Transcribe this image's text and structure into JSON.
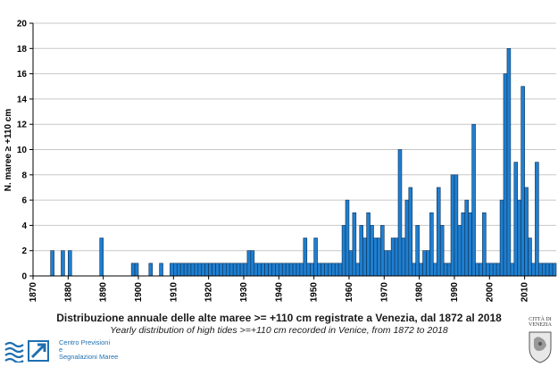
{
  "chart_data": {
    "type": "bar",
    "title": "Distribuzione annuale delle alte maree >= +110 cm registrate a Venezia, dal 1872 al 2018",
    "subtitle": "Yearly distribution of high tides >=+110 cm recorded in Venice, from 1872 to 2018",
    "ylabel": "N. maree ≥ +110 cm",
    "xlabel": "",
    "xlim": [
      1870,
      2018
    ],
    "ylim": [
      0,
      20
    ],
    "x_ticks": [
      "1870",
      "1880",
      "1890",
      "1900",
      "1910",
      "1920",
      "1930",
      "1940",
      "1950",
      "1960",
      "1970",
      "1980",
      "1990",
      "2000",
      "2010"
    ],
    "y_ticks": [
      "0",
      "2",
      "4",
      "6",
      "8",
      "10",
      "12",
      "14",
      "16",
      "18",
      "20"
    ],
    "grid": "horizontal",
    "bar_color": "#1f7fd0",
    "years": [
      1875,
      1878,
      1880,
      1889,
      1898,
      1899,
      1903,
      1906,
      1909,
      1910,
      1911,
      1912,
      1913,
      1914,
      1915,
      1916,
      1917,
      1918,
      1919,
      1920,
      1921,
      1922,
      1923,
      1924,
      1925,
      1926,
      1927,
      1928,
      1929,
      1930,
      1931,
      1932,
      1933,
      1934,
      1935,
      1936,
      1937,
      1938,
      1939,
      1940,
      1941,
      1942,
      1943,
      1944,
      1945,
      1946,
      1947,
      1948,
      1949,
      1950,
      1951,
      1952,
      1953,
      1954,
      1955,
      1956,
      1957,
      1958,
      1959,
      1960,
      1961,
      1962,
      1963,
      1964,
      1965,
      1966,
      1967,
      1968,
      1969,
      1970,
      1971,
      1972,
      1973,
      1974,
      1975,
      1976,
      1977,
      1978,
      1979,
      1980,
      1981,
      1982,
      1983,
      1984,
      1985,
      1986,
      1987,
      1988,
      1989,
      1990,
      1991,
      1992,
      1993,
      1994,
      1995,
      1996,
      1997,
      1998,
      1999,
      2000,
      2001,
      2002,
      2003,
      2004,
      2005,
      2006,
      2007,
      2008,
      2009,
      2010,
      2011,
      2012,
      2013,
      2014,
      2015,
      2016,
      2017,
      2018
    ],
    "values": [
      2,
      2,
      2,
      3,
      1,
      1,
      1,
      1,
      1,
      1,
      1,
      1,
      1,
      1,
      1,
      1,
      1,
      1,
      1,
      1,
      1,
      1,
      1,
      1,
      1,
      1,
      1,
      1,
      1,
      1,
      2,
      2,
      1,
      1,
      1,
      1,
      1,
      1,
      1,
      1,
      1,
      1,
      1,
      1,
      1,
      1,
      3,
      1,
      1,
      3,
      1,
      1,
      1,
      1,
      1,
      1,
      1,
      4,
      6,
      2,
      5,
      1,
      4,
      3,
      5,
      4,
      3,
      3,
      4,
      2,
      2,
      3,
      3,
      10,
      3,
      6,
      7,
      1,
      4,
      1,
      2,
      2,
      5,
      1,
      7,
      4,
      1,
      1,
      8,
      8,
      4,
      5,
      6,
      5,
      12,
      1,
      1,
      5,
      1,
      1,
      1,
      1,
      6,
      16,
      18,
      1,
      9,
      6,
      15,
      7,
      3,
      1,
      9,
      1,
      1,
      1,
      1,
      1
    ],
    "series_name": ""
  },
  "logo": {
    "org_line1": "Centro Previsioni",
    "org_line2": "e",
    "org_line3": "Segnalazioni Maree",
    "city_line1": "CITTÀ DI",
    "city_line2": "VENEZIA"
  }
}
